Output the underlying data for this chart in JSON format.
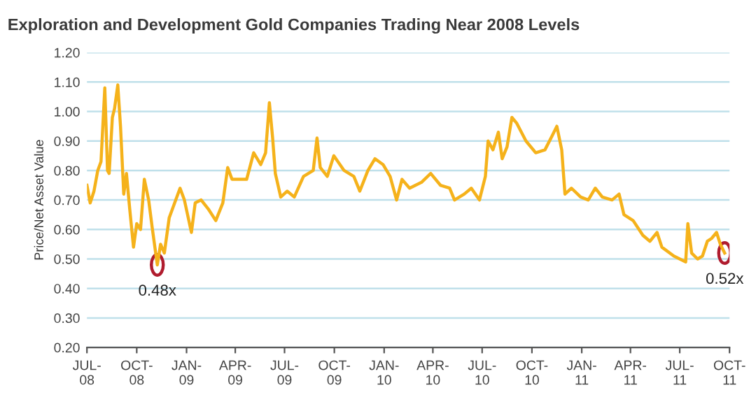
{
  "chart_data": {
    "type": "line",
    "title": "Exploration and Development Gold Companies Trading Near 2008 Levels",
    "ylabel": "Price/Net Asset Value",
    "x": [
      "2008-07-01",
      "2008-07-07",
      "2008-07-14",
      "2008-07-21",
      "2008-07-27",
      "2008-08-03",
      "2008-08-08",
      "2008-08-11",
      "2008-08-17",
      "2008-08-21",
      "2008-08-27",
      "2008-09-01",
      "2008-09-07",
      "2008-09-12",
      "2008-09-18",
      "2008-09-25",
      "2008-10-01",
      "2008-10-08",
      "2008-10-15",
      "2008-10-23",
      "2008-10-30",
      "2008-11-08",
      "2008-11-14",
      "2008-11-21",
      "2008-11-30",
      "2008-12-20",
      "2008-12-28",
      "2009-01-10",
      "2009-01-17",
      "2009-01-28",
      "2009-02-10",
      "2009-02-24",
      "2009-03-09",
      "2009-03-18",
      "2009-03-26",
      "2009-04-22",
      "2009-05-05",
      "2009-05-18",
      "2009-05-27",
      "2009-06-03",
      "2009-06-09",
      "2009-06-14",
      "2009-06-24",
      "2009-07-06",
      "2009-07-19",
      "2009-08-05",
      "2009-08-23",
      "2009-08-30",
      "2009-09-05",
      "2009-09-18",
      "2009-09-30",
      "2009-10-19",
      "2009-11-06",
      "2009-11-17",
      "2009-12-02",
      "2009-12-15",
      "2009-12-30",
      "2010-01-12",
      "2010-01-24",
      "2010-02-03",
      "2010-02-17",
      "2010-03-11",
      "2010-03-28",
      "2010-04-15",
      "2010-05-02",
      "2010-05-11",
      "2010-05-29",
      "2010-06-11",
      "2010-06-26",
      "2010-07-07",
      "2010-07-12",
      "2010-07-21",
      "2010-07-31",
      "2010-08-07",
      "2010-08-16",
      "2010-08-25",
      "2010-09-03",
      "2010-09-20",
      "2010-10-08",
      "2010-10-25",
      "2010-11-08",
      "2010-11-16",
      "2010-11-25",
      "2010-12-01",
      "2010-12-13",
      "2010-12-30",
      "2011-01-13",
      "2011-01-26",
      "2011-02-08",
      "2011-02-26",
      "2011-03-11",
      "2011-03-20",
      "2011-04-06",
      "2011-04-24",
      "2011-05-07",
      "2011-05-20",
      "2011-05-29",
      "2011-06-20",
      "2011-07-12",
      "2011-07-16",
      "2011-07-23",
      "2011-08-03",
      "2011-08-12",
      "2011-08-21",
      "2011-08-29",
      "2011-09-07",
      "2011-09-14",
      "2011-09-22"
    ],
    "series": [
      {
        "color": "#f5b21b",
        "values": [
          0.75,
          0.69,
          0.73,
          0.8,
          0.83,
          1.08,
          0.8,
          0.79,
          0.98,
          1.01,
          1.09,
          0.95,
          0.72,
          0.79,
          0.67,
          0.54,
          0.62,
          0.6,
          0.77,
          0.7,
          0.6,
          0.48,
          0.55,
          0.52,
          0.64,
          0.74,
          0.7,
          0.59,
          0.69,
          0.7,
          0.67,
          0.63,
          0.69,
          0.81,
          0.77,
          0.77,
          0.86,
          0.82,
          0.86,
          1.03,
          0.91,
          0.79,
          0.71,
          0.73,
          0.71,
          0.78,
          0.8,
          0.91,
          0.81,
          0.78,
          0.85,
          0.8,
          0.78,
          0.73,
          0.8,
          0.84,
          0.82,
          0.78,
          0.7,
          0.77,
          0.74,
          0.76,
          0.79,
          0.75,
          0.74,
          0.7,
          0.72,
          0.74,
          0.7,
          0.78,
          0.9,
          0.87,
          0.93,
          0.84,
          0.88,
          0.98,
          0.96,
          0.9,
          0.86,
          0.87,
          0.92,
          0.95,
          0.87,
          0.72,
          0.74,
          0.71,
          0.7,
          0.74,
          0.71,
          0.7,
          0.72,
          0.65,
          0.63,
          0.58,
          0.56,
          0.59,
          0.54,
          0.51,
          0.49,
          0.62,
          0.52,
          0.5,
          0.51,
          0.56,
          0.57,
          0.59,
          0.55,
          0.52
        ]
      }
    ],
    "xlim": [
      "2008-07-01",
      "2011-10-01"
    ],
    "xticks": [
      {
        "value": "2008-07-01",
        "label": "JUL-\n08"
      },
      {
        "value": "2008-10-01",
        "label": "OCT-\n08"
      },
      {
        "value": "2009-01-01",
        "label": "JAN-\n09"
      },
      {
        "value": "2009-04-01",
        "label": "APR-\n09"
      },
      {
        "value": "2009-07-01",
        "label": "JUL-\n09"
      },
      {
        "value": "2009-10-01",
        "label": "OCT-\n09"
      },
      {
        "value": "2010-01-01",
        "label": "JAN-\n10"
      },
      {
        "value": "2010-04-01",
        "label": "APR-\n10"
      },
      {
        "value": "2010-07-01",
        "label": "JUL-\n10"
      },
      {
        "value": "2010-10-01",
        "label": "OCT-\n10"
      },
      {
        "value": "2011-01-01",
        "label": "JAN-\n11"
      },
      {
        "value": "2011-04-01",
        "label": "APR-\n11"
      },
      {
        "value": "2011-07-01",
        "label": "JUL-\n11"
      },
      {
        "value": "2011-10-01",
        "label": "OCT-\n11"
      }
    ],
    "ylim": [
      0.2,
      1.2
    ],
    "yticks": [
      {
        "value": 0.2,
        "label": "0.20"
      },
      {
        "value": 0.3,
        "label": "0.30"
      },
      {
        "value": 0.4,
        "label": "0.40"
      },
      {
        "value": 0.5,
        "label": "0.50"
      },
      {
        "value": 0.6,
        "label": "0.60"
      },
      {
        "value": 0.7,
        "label": "0.70"
      },
      {
        "value": 0.8,
        "label": "0.80"
      },
      {
        "value": 0.9,
        "label": "0.90"
      },
      {
        "value": 1.0,
        "label": "1.00"
      },
      {
        "value": 1.1,
        "label": "1.10"
      },
      {
        "value": 1.2,
        "label": "1.20"
      }
    ],
    "grid": "y",
    "annotations": [
      {
        "text": "0.48x",
        "x": "2008-11-08",
        "y": 0.48
      },
      {
        "text": "0.52x",
        "x": "2011-09-22",
        "y": 0.52
      }
    ]
  }
}
